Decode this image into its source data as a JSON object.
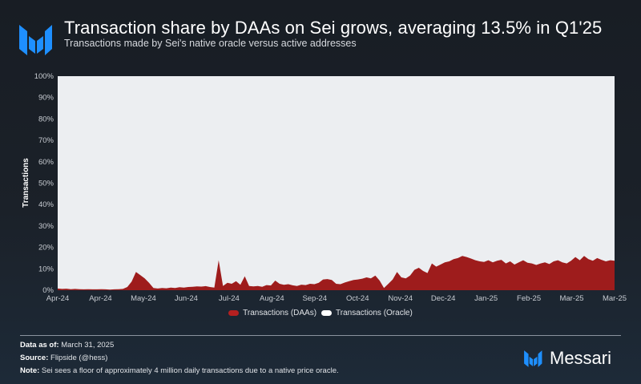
{
  "header": {
    "title": "Transaction share by DAAs on Sei grows, averaging 13.5% in Q1'25",
    "subtitle": "Transactions made by Sei's native oracle versus active addresses",
    "logo_icon": "messari-logo-icon"
  },
  "colors": {
    "daa": "#9e1c1c",
    "oracle": "#eceef1",
    "brand_blue": "#1e8fff",
    "background": "#1b2129"
  },
  "chart_data": {
    "type": "area",
    "stacked": true,
    "percent": true,
    "title": "Transaction share by DAAs on Sei grows, averaging 13.5% in Q1'25",
    "xlabel": "",
    "ylabel": "Transactions",
    "ylim": [
      0,
      100
    ],
    "yticks": [
      "0%",
      "10%",
      "20%",
      "30%",
      "40%",
      "50%",
      "60%",
      "70%",
      "80%",
      "90%",
      "100%"
    ],
    "xticks": [
      "Apr-24",
      "Apr-24",
      "May-24",
      "Jun-24",
      "Jul-24",
      "Aug-24",
      "Sep-24",
      "Oct-24",
      "Nov-24",
      "Dec-24",
      "Jan-25",
      "Feb-25",
      "Mar-25",
      "Mar-25"
    ],
    "legend": [
      "Transactions (DAAs)",
      "Transactions (Oracle)"
    ],
    "legend_position": "bottom",
    "grid": false,
    "x_range": [
      "2024-04-01",
      "2025-03-31"
    ],
    "series": [
      {
        "name": "Transactions (DAAs)",
        "comment": "share of daily transactions in %, sampled ~every 4 days from Apr-24 to Mar-25",
        "values": [
          0.8,
          0.6,
          0.7,
          0.5,
          0.6,
          0.5,
          0.4,
          0.5,
          0.4,
          0.4,
          0.5,
          0.4,
          0.3,
          0.4,
          0.5,
          0.6,
          1.5,
          4.0,
          8.5,
          7.0,
          5.5,
          3.5,
          1.0,
          0.8,
          1.0,
          0.9,
          1.2,
          1.0,
          1.4,
          1.2,
          1.5,
          1.6,
          1.8,
          1.7,
          1.9,
          1.5,
          1.2,
          14.0,
          2.0,
          3.5,
          3.0,
          4.2,
          2.5,
          6.5,
          2.0,
          1.8,
          2.0,
          1.6,
          2.4,
          2.2,
          4.5,
          3.0,
          2.5,
          2.8,
          2.3,
          2.0,
          2.6,
          2.4,
          3.0,
          2.8,
          3.5,
          5.0,
          5.2,
          4.8,
          3.0,
          2.8,
          3.6,
          4.2,
          4.8,
          5.0,
          5.4,
          6.0,
          5.5,
          6.8,
          4.5,
          1.0,
          3.0,
          5.0,
          8.5,
          6.0,
          5.5,
          6.8,
          9.5,
          10.5,
          9.0,
          8.0,
          12.5,
          11.0,
          12.0,
          13.0,
          13.5,
          14.5,
          15.0,
          16.0,
          15.5,
          14.8,
          14.0,
          13.5,
          13.2,
          14.0,
          13.0,
          13.8,
          14.2,
          12.5,
          13.5,
          12.0,
          13.0,
          14.0,
          12.8,
          12.5,
          11.8,
          12.5,
          13.0,
          12.2,
          13.5,
          14.0,
          13.0,
          12.5,
          13.8,
          15.5,
          14.0,
          16.0,
          14.5,
          13.8,
          15.0,
          14.2,
          13.5,
          14.0,
          13.8
        ]
      },
      {
        "name": "Transactions (Oracle)",
        "comment": "remainder to 100%",
        "values_rule": "100 - DAAs"
      }
    ]
  },
  "footer": {
    "data_as_of_label": "Data as of:",
    "data_as_of_value": "March 31, 2025",
    "source_label": "Source:",
    "source_value": "Flipside (@hess)",
    "note_label": "Note:",
    "note_value": "Sei sees a floor of approximately 4 million daily transactions due to a native price oracle.",
    "brand_name": "Messari"
  }
}
